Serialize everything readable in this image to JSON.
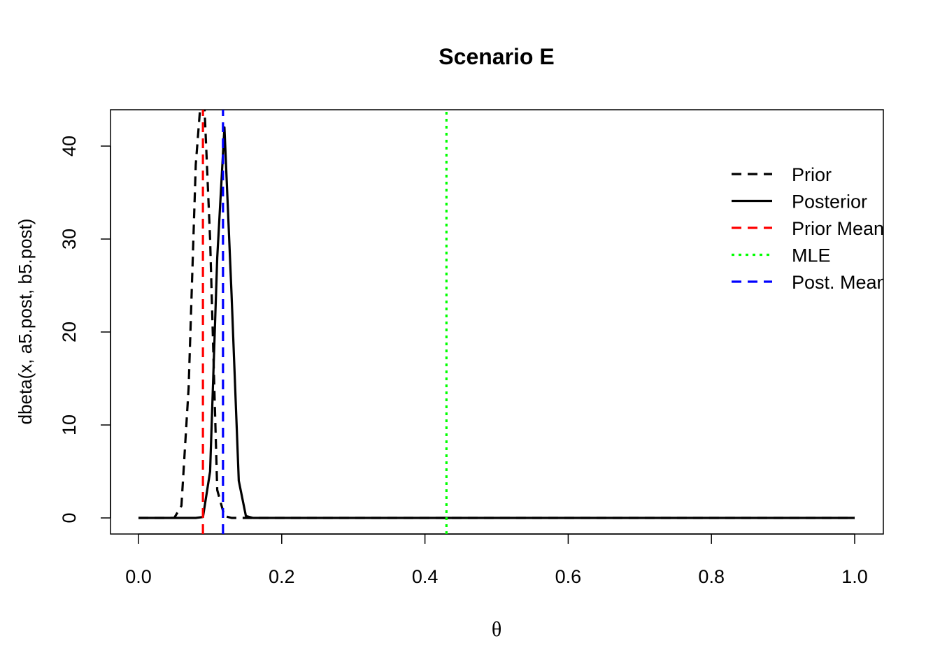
{
  "chart_data": {
    "type": "line",
    "title": "Scenario E",
    "xlabel": "θ",
    "ylabel": "dbeta(x, a5.post, b5.post)",
    "xlim": [
      0,
      1
    ],
    "ylim": [
      -1.6,
      44
    ],
    "xticks": [
      "0.0",
      "0.2",
      "0.4",
      "0.6",
      "0.8",
      "1.0"
    ],
    "yticks": [
      "0",
      "10",
      "20",
      "30",
      "40"
    ],
    "grid": false,
    "legend_position": "top-right",
    "series": [
      {
        "name": "Prior",
        "style": "dashed",
        "color": "#000000",
        "x": [
          0.0,
          0.01,
          0.02,
          0.03,
          0.04,
          0.05,
          0.06,
          0.07,
          0.08,
          0.09,
          0.1,
          0.11,
          0.12,
          0.13,
          0.14,
          0.15,
          0.16,
          1.0
        ],
        "y": [
          0,
          0,
          0,
          0,
          0,
          0.01,
          1.3,
          14,
          38,
          48,
          30,
          3,
          0.2,
          0,
          0,
          0,
          0,
          0
        ]
      },
      {
        "name": "Posterior",
        "style": "solid",
        "color": "#000000",
        "x": [
          0.0,
          0.01,
          0.02,
          0.03,
          0.04,
          0.05,
          0.06,
          0.07,
          0.08,
          0.09,
          0.1,
          0.11,
          0.12,
          0.13,
          0.14,
          0.15,
          0.16,
          1.0
        ],
        "y": [
          0,
          0,
          0,
          0,
          0,
          0,
          0,
          0,
          0,
          0.1,
          5,
          28,
          42,
          24,
          4,
          0.2,
          0,
          0
        ]
      }
    ],
    "vlines": [
      {
        "name": "Prior Mean",
        "x": 0.09,
        "style": "dashed",
        "color": "#ff0000"
      },
      {
        "name": "MLE",
        "x": 0.43,
        "style": "dotted",
        "color": "#00ff00"
      },
      {
        "name": "Post. Mean",
        "x": 0.118,
        "style": "dashed",
        "color": "#0000ff"
      }
    ],
    "legend": [
      {
        "label": "Prior",
        "style": "dashed",
        "color": "#000000"
      },
      {
        "label": "Posterior",
        "style": "solid",
        "color": "#000000"
      },
      {
        "label": "Prior Mean",
        "style": "dashed",
        "color": "#ff0000"
      },
      {
        "label": "MLE",
        "style": "dotted",
        "color": "#00ff00"
      },
      {
        "label": "Post. Mean",
        "style": "dashed",
        "color": "#0000ff"
      }
    ]
  }
}
